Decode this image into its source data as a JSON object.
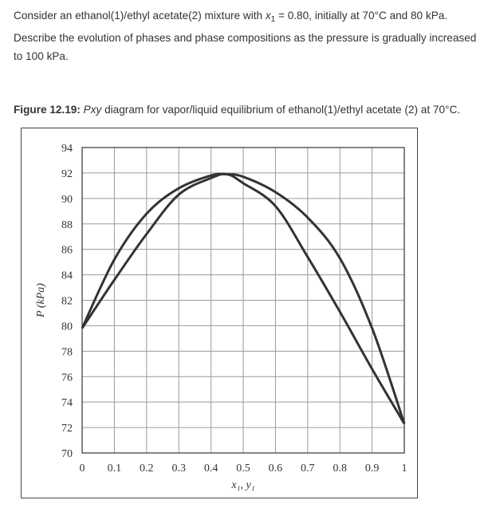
{
  "question": {
    "line1_a": "Consider an ethanol(1)/ethyl acetate(2) mixture with ",
    "x_symbol": "x",
    "x_sub": "1",
    "line1_b": " = 0.80, initially at 70°C and 80 kPa.",
    "line2": "Describe the evolution of phases and phase compositions as the pressure is gradually increased",
    "line3": "to 100 kPa."
  },
  "caption": {
    "label": "Figure 12.19:",
    "italic": "Pxy",
    "rest": " diagram for vapor/liquid equilibrium of ethanol(1)/ethyl acetate (2) at 70°C."
  },
  "colors": {
    "curve": "#333333",
    "grid": "#9a9a9a",
    "axis": "#333333"
  },
  "chart_data": {
    "type": "line",
    "xlabel": "x₁, y₁",
    "ylabel": "P (kPa)",
    "xlim": [
      0,
      1
    ],
    "ylim": [
      70,
      94
    ],
    "xticks": [
      0,
      0.1,
      0.2,
      0.3,
      0.4,
      0.5,
      0.6,
      0.7,
      0.8,
      0.9,
      1
    ],
    "xtick_labels": [
      "0",
      "0.1",
      "0.2",
      "0.3",
      "0.4",
      "0.5",
      "0.6",
      "0.7",
      "0.8",
      "0.9",
      "1"
    ],
    "yticks": [
      70,
      72,
      74,
      76,
      78,
      80,
      82,
      84,
      86,
      88,
      90,
      92,
      94
    ],
    "ytick_labels": [
      "70",
      "72",
      "74",
      "76",
      "78",
      "80",
      "82",
      "84",
      "86",
      "88",
      "90",
      "92",
      "94"
    ],
    "grid": true,
    "series": [
      {
        "x": [
          0,
          0.1,
          0.2,
          0.3,
          0.4,
          0.45,
          0.5,
          0.6,
          0.7,
          0.8,
          0.9,
          1.0
        ],
        "values": [
          79.8,
          85.2,
          88.8,
          90.8,
          91.8,
          91.9,
          91.7,
          90.5,
          88.5,
          85.3,
          79.8,
          72.3
        ]
      },
      {
        "x": [
          0,
          0.1,
          0.2,
          0.3,
          0.4,
          0.45,
          0.5,
          0.6,
          0.7,
          0.8,
          0.9,
          1.0
        ],
        "values": [
          79.8,
          83.6,
          87.2,
          90.3,
          91.6,
          91.9,
          91.2,
          89.4,
          85.4,
          81.1,
          76.6,
          72.3
        ]
      }
    ]
  }
}
